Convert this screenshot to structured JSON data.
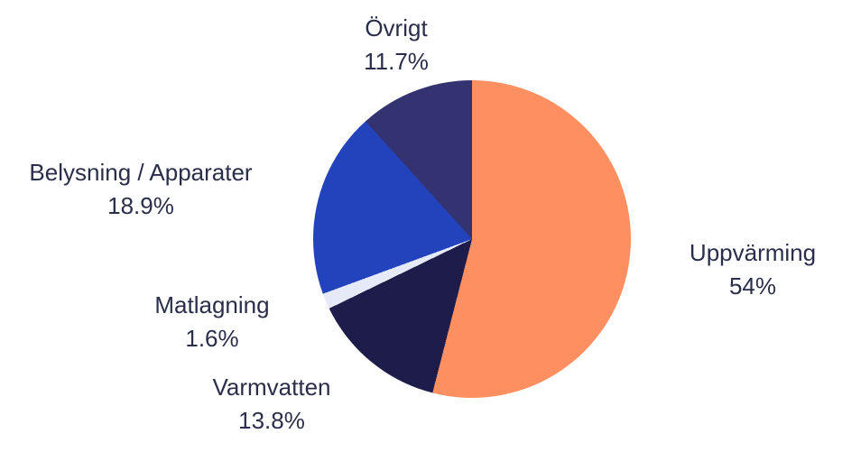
{
  "chart_data": {
    "type": "pie",
    "title": "",
    "legend_position": "none",
    "labels_outside": true,
    "start_angle_deg": 0,
    "direction": "clockwise",
    "background_color": "#ffffff",
    "label_text_color": "#2b2e4a",
    "slices": [
      {
        "label": "Uppvärming",
        "pct_label": "54%",
        "value": 54,
        "color": "#FD8F61"
      },
      {
        "label": "Varmvatten",
        "pct_label": "13.8%",
        "value": 13.8,
        "color": "#1E1C4A"
      },
      {
        "label": "Matlagning",
        "pct_label": "1.6%",
        "value": 1.6,
        "color": "#E6E9F7"
      },
      {
        "label": "Belysning / Apparater",
        "pct_label": "18.9%",
        "value": 18.9,
        "color": "#2343BC"
      },
      {
        "label": "Övrigt",
        "pct_label": "11.7%",
        "value": 11.7,
        "color": "#333371"
      }
    ]
  }
}
